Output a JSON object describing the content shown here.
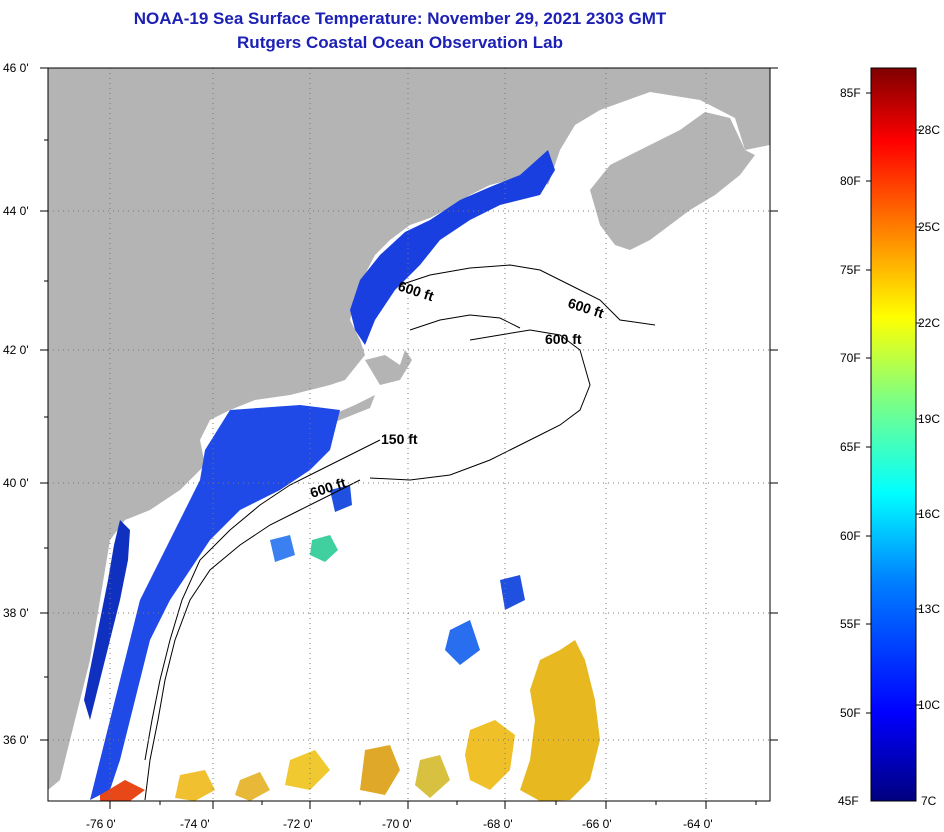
{
  "header": {
    "title": "NOAA-19 Sea Surface Temperature:  November 29, 2021 2303 GMT",
    "subtitle": "Rutgers Coastal Ocean Observation Lab"
  },
  "map": {
    "lat_labels": [
      "46 0'",
      "44 0'",
      "42 0'",
      "40 0'",
      "38 0'",
      "36 0'"
    ],
    "lon_labels": [
      "-76 0'",
      "-74 0'",
      "-72 0'",
      "-70 0'",
      "-68 0'",
      "-66 0'",
      "-64 0'"
    ],
    "contour_labels": [
      "600 ft",
      "600 ft",
      "600 ft",
      "150 ft",
      "600 ft"
    ],
    "colors": {
      "land": "#b4b4b4",
      "ocean_nodata": "#ffffff",
      "cold_water": "#1a3fe0",
      "warm_water": "#e8b820"
    }
  },
  "colorbar": {
    "fahrenheit_labels": [
      "85F",
      "80F",
      "75F",
      "70F",
      "65F",
      "60F",
      "55F",
      "50F",
      "45F"
    ],
    "celsius_labels": [
      "28C",
      "25C",
      "22C",
      "19C",
      "16C",
      "13C",
      "10C",
      "7C"
    ],
    "range_f": [
      45,
      86
    ],
    "gradient": [
      "#00007f",
      "#0000ff",
      "#007fff",
      "#00ffff",
      "#7fff7f",
      "#ffff00",
      "#ff7f00",
      "#ff0000",
      "#7f0000"
    ]
  }
}
